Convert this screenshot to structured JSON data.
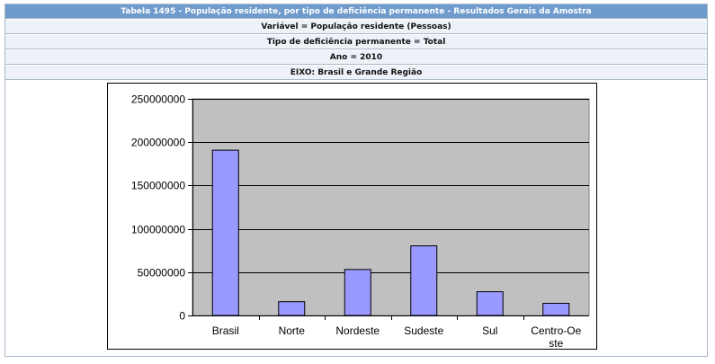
{
  "table": {
    "title": "Tabela 1495 - População residente, por tipo de deficiência permanente - Resultados Gerais da Amostra",
    "variable": "Variável = População residente (Pessoas)",
    "disability_type": "Tipo de deficiência permanente = Total",
    "year": "Ano = 2010",
    "axis": "EIXO: Brasil e Grande Região"
  },
  "colors": {
    "header_bg": "#6f9ccd",
    "row_bg": "#eef2f8",
    "plot_bg": "#c0c0c0",
    "bar_fill": "#9999ff"
  },
  "chart_data": {
    "type": "bar",
    "categories": [
      "Brasil",
      "Norte",
      "Nordeste",
      "Sudeste",
      "Sul",
      "Centro-Oeste"
    ],
    "category_display": [
      [
        "Brasil"
      ],
      [
        "Norte"
      ],
      [
        "Nordeste"
      ],
      [
        "Sudeste"
      ],
      [
        "Sul"
      ],
      [
        "Centro-Oe",
        "ste"
      ]
    ],
    "values": [
      190755799,
      15864454,
      53081950,
      80364410,
      27386891,
      14058094
    ],
    "ylim": [
      0,
      250000000
    ],
    "yticks": [
      0,
      50000000,
      100000000,
      150000000,
      200000000,
      250000000
    ],
    "ytick_labels": [
      "0",
      "50000000",
      "100000000",
      "150000000",
      "200000000",
      "250000000"
    ],
    "grid": true,
    "legend": "none",
    "title": "",
    "xlabel": "",
    "ylabel": ""
  }
}
